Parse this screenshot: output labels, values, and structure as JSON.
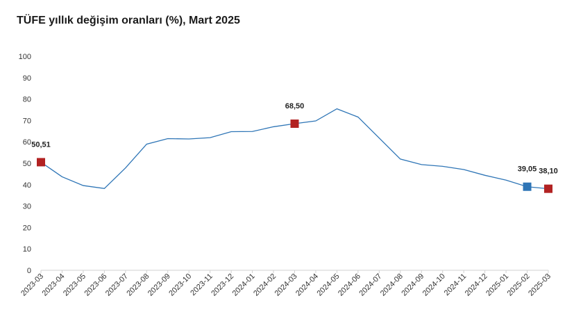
{
  "chart_data": {
    "type": "line",
    "title": "TÜFE yıllık değişim oranları (%), Mart 2025",
    "xlabel": "",
    "ylabel": "",
    "ylim": [
      0,
      100
    ],
    "yticks": [
      "0",
      "10",
      "20",
      "30",
      "40",
      "50",
      "60",
      "70",
      "80",
      "90",
      "100"
    ],
    "categories": [
      "2023-03",
      "2023-04",
      "2023-05",
      "2023-06",
      "2023-07",
      "2023-08",
      "2023-09",
      "2023-10",
      "2023-11",
      "2023-12",
      "2024-01",
      "2024-02",
      "2024-03",
      "2024-04",
      "2024-05",
      "2024-06",
      "2024-07",
      "2024-08",
      "2024-09",
      "2024-10",
      "2024-11",
      "2024-12",
      "2025-01",
      "2025-02",
      "2025-03"
    ],
    "values": [
      50.51,
      43.68,
      39.59,
      38.21,
      47.83,
      58.94,
      61.53,
      61.36,
      61.98,
      64.77,
      64.86,
      67.07,
      68.5,
      69.8,
      75.45,
      71.6,
      61.78,
      51.97,
      49.38,
      48.58,
      47.09,
      44.38,
      42.12,
      39.05,
      38.1
    ],
    "line_color": "#2e75b6",
    "highlights": [
      {
        "index": 0,
        "label": "50,51",
        "color": "#b22222"
      },
      {
        "index": 12,
        "label": "68,50",
        "color": "#b22222"
      },
      {
        "index": 23,
        "label": "39,05",
        "color": "#2e75b6"
      },
      {
        "index": 24,
        "label": "38,10",
        "color": "#b22222"
      }
    ],
    "grid": false
  }
}
